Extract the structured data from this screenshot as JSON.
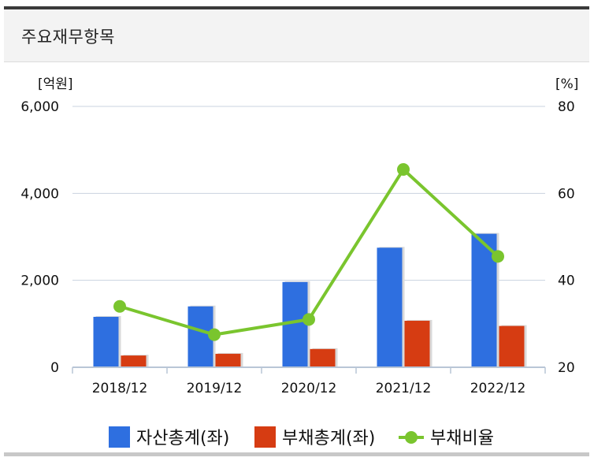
{
  "header": {
    "title": "주요재무항목"
  },
  "chart_data": {
    "type": "bar",
    "categories": [
      "2018/12",
      "2019/12",
      "2020/12",
      "2021/12",
      "2022/12"
    ],
    "left_unit": "[억원]",
    "right_unit": "[%]",
    "left_ylim": [
      0,
      6000
    ],
    "right_ylim": [
      20,
      80
    ],
    "left_ticks": [
      {
        "value": 0,
        "label": "0"
      },
      {
        "value": 2000,
        "label": "2,000"
      },
      {
        "value": 4000,
        "label": "4,000"
      },
      {
        "value": 6000,
        "label": "6,000"
      }
    ],
    "right_ticks": [
      {
        "value": 20,
        "label": "20"
      },
      {
        "value": 40,
        "label": "40"
      },
      {
        "value": 60,
        "label": "60"
      },
      {
        "value": 80,
        "label": "80"
      }
    ],
    "grid": true,
    "legend_position": "bottom",
    "series": [
      {
        "name": "자산총계(좌)",
        "kind": "bar",
        "axis": "left",
        "color": "#2e6fe0",
        "values": [
          1160,
          1400,
          1960,
          2750,
          3070
        ]
      },
      {
        "name": "부채총계(좌)",
        "kind": "bar",
        "axis": "left",
        "color": "#d63c12",
        "values": [
          270,
          310,
          420,
          1070,
          950
        ]
      },
      {
        "name": "부채비율",
        "kind": "line",
        "axis": "right",
        "color": "#7ac52e",
        "values": [
          34,
          27.5,
          31,
          65.5,
          45.5
        ]
      }
    ]
  }
}
